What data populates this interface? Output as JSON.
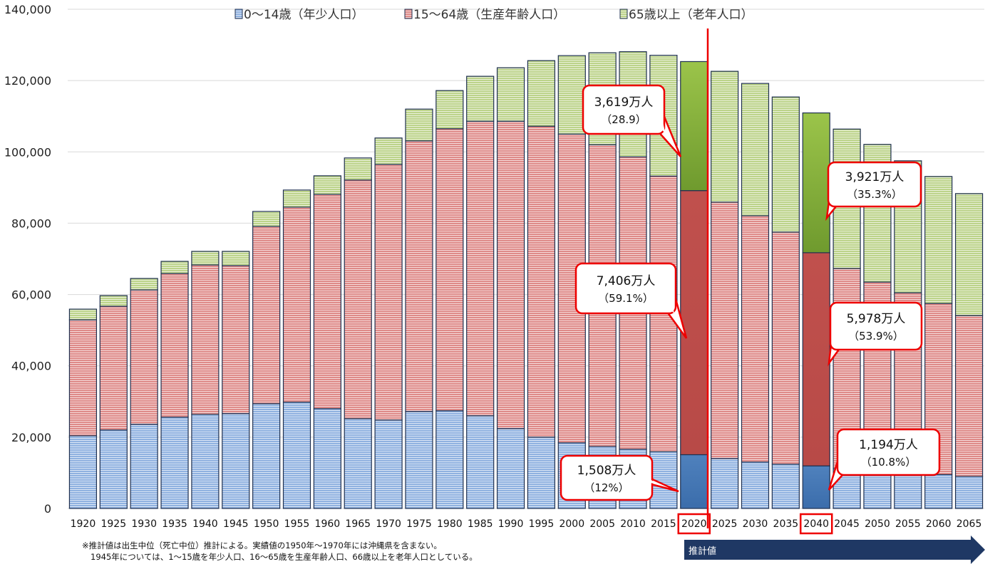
{
  "chart_data": {
    "type": "bar",
    "stacked": true,
    "categories": [
      "1920",
      "1925",
      "1930",
      "1935",
      "1940",
      "1945",
      "1950",
      "1955",
      "1960",
      "1965",
      "1970",
      "1975",
      "1980",
      "1985",
      "1990",
      "1995",
      "2000",
      "2005",
      "2010",
      "2015",
      "2020",
      "2025",
      "2030",
      "2035",
      "2040",
      "2045",
      "2050",
      "2055",
      "2060",
      "2065"
    ],
    "series": [
      {
        "name": "0～14歳（年少人口）",
        "color": "#4f81bd",
        "values": [
          20400,
          22000,
          23600,
          25600,
          26400,
          26600,
          29400,
          29800,
          28000,
          25200,
          24800,
          27200,
          27400,
          26000,
          22400,
          20000,
          18400,
          17400,
          16600,
          15900,
          15080,
          14000,
          13000,
          12400,
          11940,
          11200,
          10600,
          10000,
          9500,
          9000
        ]
      },
      {
        "name": "15～64歳（生産年齢人口）",
        "color": "#c0504d",
        "values": [
          32500,
          34700,
          37700,
          40300,
          41900,
          41500,
          49700,
          54700,
          60100,
          66900,
          71700,
          75900,
          79100,
          82600,
          86200,
          87200,
          86600,
          84600,
          82000,
          77300,
          74060,
          71900,
          69100,
          65100,
          59780,
          56100,
          52900,
          50500,
          48000,
          45100
        ]
      },
      {
        "name": "65歳以上（老年人口）",
        "color": "#9bbb59",
        "values": [
          3000,
          3000,
          3200,
          3400,
          3800,
          4000,
          4200,
          4800,
          5200,
          6200,
          7400,
          8900,
          10700,
          12600,
          15000,
          18400,
          22000,
          25800,
          29500,
          33900,
          36190,
          36700,
          37100,
          37900,
          39210,
          39100,
          38600,
          37000,
          35600,
          34200
        ]
      }
    ],
    "highlight_categories": [
      "2020",
      "2040"
    ],
    "ylim": [
      0,
      140000
    ],
    "yticks": [
      "0",
      "20,000",
      "40,000",
      "60,000",
      "80,000",
      "100,000",
      "120,000",
      "140,000"
    ],
    "grid": true,
    "legend_position": "top",
    "annotations": [
      {
        "category": "2020",
        "series": 2,
        "line1": "3,619万人",
        "line2": "（28.9）"
      },
      {
        "category": "2020",
        "series": 1,
        "line1": "7,406万人",
        "line2": "（59.1%）"
      },
      {
        "category": "2020",
        "series": 0,
        "line1": "1,508万人",
        "line2": "（12%）"
      },
      {
        "category": "2040",
        "series": 2,
        "line1": "3,921万人",
        "line2": "（35.3%）"
      },
      {
        "category": "2040",
        "series": 1,
        "line1": "5,978万人",
        "line2": "（53.9%）"
      },
      {
        "category": "2040",
        "series": 0,
        "line1": "1,194万人",
        "line2": "（10.8%）"
      }
    ],
    "projection_label": "推計値",
    "notes": [
      "※推計値は出生中位（死亡中位）推計による。実績値の1950年～1970年には沖縄県を含まない。",
      "1945年については、1～15歳を年少人口、16～65歳を生産年齢人口、66歳以上を老年人口としている。"
    ]
  }
}
